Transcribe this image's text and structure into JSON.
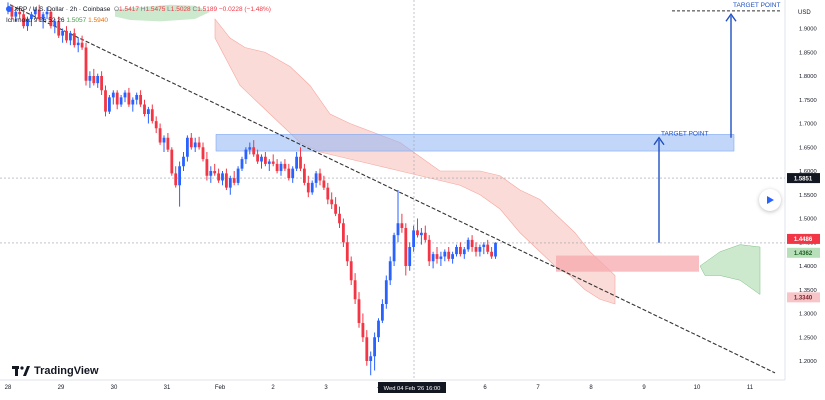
{
  "header": {
    "pair": "XRP / U.S. Dollar",
    "interval": "2h",
    "exchange": "Coinbase",
    "open_label": "O",
    "open": "1.5417",
    "high_label": "H",
    "high": "1.5475",
    "low_label": "L",
    "low": "1.5028",
    "close_label": "C",
    "close": "1.5189",
    "change": "−0.0228 (−1.48%)",
    "indicator_name": "Ichimoku 9 26 52 26",
    "indicator_val1": "1.5057",
    "indicator_val2": "1.5940"
  },
  "branding": {
    "logo_text": "TradingView"
  },
  "colors": {
    "bull": "#2962ff",
    "bear": "#f23645",
    "cloud_bear": "#f8bdb6",
    "cloud_bull": "#b7dfb9",
    "zone_blue": "#90b4f5",
    "zone_red": "#f7a8ae",
    "trendline": "#333333",
    "arrow": "#1e4fc2"
  },
  "icons": {
    "play": "play-icon",
    "logo": "tradingview-logo-icon"
  },
  "chart_data": {
    "type": "candlestick",
    "y_axis_unit": "USD",
    "ylim": [
      1.16,
      1.96
    ],
    "y_ticks": [
      "1.2000",
      "1.2500",
      "1.3000",
      "1.3500",
      "1.4000",
      "1.4500",
      "1.5000",
      "1.5500",
      "1.6000",
      "1.6500",
      "1.7000",
      "1.7500",
      "1.8000",
      "1.8500",
      "1.9000"
    ],
    "x_ticks": [
      "28",
      "29",
      "30",
      "31",
      "Feb",
      "2",
      "3",
      "4",
      "5",
      "6",
      "7",
      "8",
      "9",
      "10",
      "11"
    ],
    "crosshair_date_label": "Wed 04 Feb '26   16:00",
    "price_labels": [
      {
        "value": "1.5851",
        "style": "dark"
      },
      {
        "value": "1.4486",
        "style": "red"
      },
      {
        "value": "1.4362",
        "style": "green"
      },
      {
        "value": "1.3340",
        "style": "pink"
      }
    ],
    "annotations": [
      {
        "text": "TARGET POINT",
        "target": 1.67
      },
      {
        "text": "TARGET POINT",
        "target": 1.93
      }
    ],
    "zones": [
      {
        "name": "resistance",
        "low": 1.642,
        "high": 1.677
      },
      {
        "name": "support",
        "low": 1.388,
        "high": 1.422
      }
    ],
    "trendline": {
      "from": [
        "28",
        1.95
      ],
      "to": [
        "11",
        1.175
      ]
    },
    "candles": [
      [
        1.94,
        1.955,
        1.93,
        1.945
      ],
      [
        1.945,
        1.95,
        1.92,
        1.925
      ],
      [
        1.925,
        1.94,
        1.915,
        1.935
      ],
      [
        1.935,
        1.945,
        1.92,
        1.93
      ],
      [
        1.93,
        1.94,
        1.9,
        1.905
      ],
      [
        1.905,
        1.925,
        1.895,
        1.92
      ],
      [
        1.92,
        1.935,
        1.905,
        1.93
      ],
      [
        1.93,
        1.945,
        1.92,
        1.94
      ],
      [
        1.94,
        1.95,
        1.915,
        1.92
      ],
      [
        1.92,
        1.935,
        1.9,
        1.93
      ],
      [
        1.93,
        1.945,
        1.92,
        1.935
      ],
      [
        1.935,
        1.94,
        1.9,
        1.905
      ],
      [
        1.905,
        1.92,
        1.89,
        1.915
      ],
      [
        1.915,
        1.925,
        1.88,
        1.885
      ],
      [
        1.885,
        1.9,
        1.87,
        1.895
      ],
      [
        1.895,
        1.905,
        1.87,
        1.875
      ],
      [
        1.875,
        1.895,
        1.865,
        1.89
      ],
      [
        1.89,
        1.9,
        1.86,
        1.865
      ],
      [
        1.865,
        1.88,
        1.85,
        1.87
      ],
      [
        1.87,
        1.885,
        1.855,
        1.86
      ],
      [
        1.86,
        1.87,
        1.78,
        1.79
      ],
      [
        1.79,
        1.81,
        1.775,
        1.8
      ],
      [
        1.8,
        1.815,
        1.78,
        1.785
      ],
      [
        1.785,
        1.805,
        1.775,
        1.8
      ],
      [
        1.8,
        1.81,
        1.76,
        1.77
      ],
      [
        1.77,
        1.78,
        1.715,
        1.725
      ],
      [
        1.725,
        1.76,
        1.72,
        1.755
      ],
      [
        1.755,
        1.77,
        1.74,
        1.765
      ],
      [
        1.765,
        1.77,
        1.73,
        1.74
      ],
      [
        1.74,
        1.76,
        1.735,
        1.755
      ],
      [
        1.755,
        1.77,
        1.745,
        1.765
      ],
      [
        1.765,
        1.775,
        1.735,
        1.74
      ],
      [
        1.74,
        1.755,
        1.725,
        1.75
      ],
      [
        1.75,
        1.765,
        1.74,
        1.76
      ],
      [
        1.76,
        1.77,
        1.735,
        1.74
      ],
      [
        1.74,
        1.75,
        1.715,
        1.72
      ],
      [
        1.72,
        1.735,
        1.7,
        1.73
      ],
      [
        1.73,
        1.74,
        1.7,
        1.705
      ],
      [
        1.705,
        1.715,
        1.68,
        1.69
      ],
      [
        1.69,
        1.7,
        1.655,
        1.66
      ],
      [
        1.66,
        1.675,
        1.64,
        1.67
      ],
      [
        1.67,
        1.68,
        1.64,
        1.645
      ],
      [
        1.645,
        1.65,
        1.59,
        1.595
      ],
      [
        1.595,
        1.61,
        1.565,
        1.57
      ],
      [
        1.57,
        1.62,
        1.525,
        1.61
      ],
      [
        1.61,
        1.64,
        1.6,
        1.63
      ],
      [
        1.63,
        1.675,
        1.62,
        1.67
      ],
      [
        1.67,
        1.68,
        1.645,
        1.65
      ],
      [
        1.65,
        1.67,
        1.64,
        1.66
      ],
      [
        1.66,
        1.672,
        1.645,
        1.65
      ],
      [
        1.65,
        1.66,
        1.62,
        1.625
      ],
      [
        1.625,
        1.64,
        1.58,
        1.59
      ],
      [
        1.59,
        1.61,
        1.575,
        1.6
      ],
      [
        1.6,
        1.615,
        1.59,
        1.595
      ],
      [
        1.595,
        1.605,
        1.575,
        1.58
      ],
      [
        1.58,
        1.6,
        1.57,
        1.595
      ],
      [
        1.595,
        1.605,
        1.56,
        1.565
      ],
      [
        1.565,
        1.59,
        1.55,
        1.585
      ],
      [
        1.585,
        1.6,
        1.57,
        1.575
      ],
      [
        1.575,
        1.61,
        1.57,
        1.605
      ],
      [
        1.605,
        1.63,
        1.6,
        1.625
      ],
      [
        1.625,
        1.65,
        1.615,
        1.645
      ],
      [
        1.645,
        1.66,
        1.635,
        1.65
      ],
      [
        1.65,
        1.665,
        1.63,
        1.635
      ],
      [
        1.635,
        1.645,
        1.615,
        1.62
      ],
      [
        1.62,
        1.635,
        1.605,
        1.63
      ],
      [
        1.63,
        1.64,
        1.61,
        1.615
      ],
      [
        1.615,
        1.625,
        1.6,
        1.62
      ],
      [
        1.62,
        1.635,
        1.61,
        1.615
      ],
      [
        1.615,
        1.625,
        1.595,
        1.6
      ],
      [
        1.6,
        1.62,
        1.59,
        1.615
      ],
      [
        1.615,
        1.625,
        1.6,
        1.605
      ],
      [
        1.605,
        1.615,
        1.58,
        1.585
      ],
      [
        1.585,
        1.61,
        1.575,
        1.605
      ],
      [
        1.605,
        1.64,
        1.6,
        1.63
      ],
      [
        1.63,
        1.65,
        1.6,
        1.605
      ],
      [
        1.605,
        1.615,
        1.57,
        1.575
      ],
      [
        1.575,
        1.59,
        1.545,
        1.555
      ],
      [
        1.555,
        1.58,
        1.55,
        1.575
      ],
      [
        1.575,
        1.6,
        1.565,
        1.595
      ],
      [
        1.595,
        1.605,
        1.57,
        1.58
      ],
      [
        1.58,
        1.59,
        1.56,
        1.565
      ],
      [
        1.565,
        1.575,
        1.53,
        1.54
      ],
      [
        1.54,
        1.555,
        1.52,
        1.53
      ],
      [
        1.53,
        1.545,
        1.505,
        1.51
      ],
      [
        1.51,
        1.525,
        1.48,
        1.49
      ],
      [
        1.49,
        1.5,
        1.44,
        1.45
      ],
      [
        1.45,
        1.465,
        1.4,
        1.41
      ],
      [
        1.41,
        1.42,
        1.36,
        1.37
      ],
      [
        1.37,
        1.385,
        1.32,
        1.33
      ],
      [
        1.33,
        1.345,
        1.27,
        1.28
      ],
      [
        1.28,
        1.3,
        1.24,
        1.25
      ],
      [
        1.25,
        1.265,
        1.19,
        1.2
      ],
      [
        1.2,
        1.22,
        1.17,
        1.21
      ],
      [
        1.21,
        1.26,
        1.18,
        1.25
      ],
      [
        1.25,
        1.29,
        1.24,
        1.285
      ],
      [
        1.285,
        1.33,
        1.28,
        1.32
      ],
      [
        1.32,
        1.38,
        1.31,
        1.37
      ],
      [
        1.37,
        1.42,
        1.36,
        1.41
      ],
      [
        1.41,
        1.47,
        1.4,
        1.465
      ],
      [
        1.465,
        1.56,
        1.45,
        1.49
      ],
      [
        1.49,
        1.51,
        1.47,
        1.48
      ],
      [
        1.48,
        1.49,
        1.38,
        1.4
      ],
      [
        1.4,
        1.45,
        1.39,
        1.44
      ],
      [
        1.44,
        1.485,
        1.43,
        1.475
      ],
      [
        1.475,
        1.5,
        1.46,
        1.465
      ],
      [
        1.465,
        1.48,
        1.445,
        1.47
      ],
      [
        1.47,
        1.485,
        1.45,
        1.455
      ],
      [
        1.455,
        1.465,
        1.4,
        1.41
      ],
      [
        1.41,
        1.43,
        1.395,
        1.425
      ],
      [
        1.425,
        1.44,
        1.405,
        1.415
      ],
      [
        1.415,
        1.43,
        1.4,
        1.42
      ],
      [
        1.42,
        1.435,
        1.41,
        1.43
      ],
      [
        1.43,
        1.44,
        1.41,
        1.415
      ],
      [
        1.415,
        1.43,
        1.405,
        1.425
      ],
      [
        1.425,
        1.445,
        1.42,
        1.44
      ],
      [
        1.44,
        1.45,
        1.42,
        1.425
      ],
      [
        1.425,
        1.44,
        1.415,
        1.435
      ],
      [
        1.435,
        1.46,
        1.43,
        1.455
      ],
      [
        1.455,
        1.465,
        1.43,
        1.44
      ],
      [
        1.44,
        1.45,
        1.42,
        1.43
      ],
      [
        1.43,
        1.445,
        1.42,
        1.44
      ],
      [
        1.44,
        1.45,
        1.425,
        1.445
      ],
      [
        1.445,
        1.455,
        1.425,
        1.43
      ],
      [
        1.43,
        1.44,
        1.415,
        1.42
      ],
      [
        1.42,
        1.45,
        1.415,
        1.449
      ]
    ]
  }
}
